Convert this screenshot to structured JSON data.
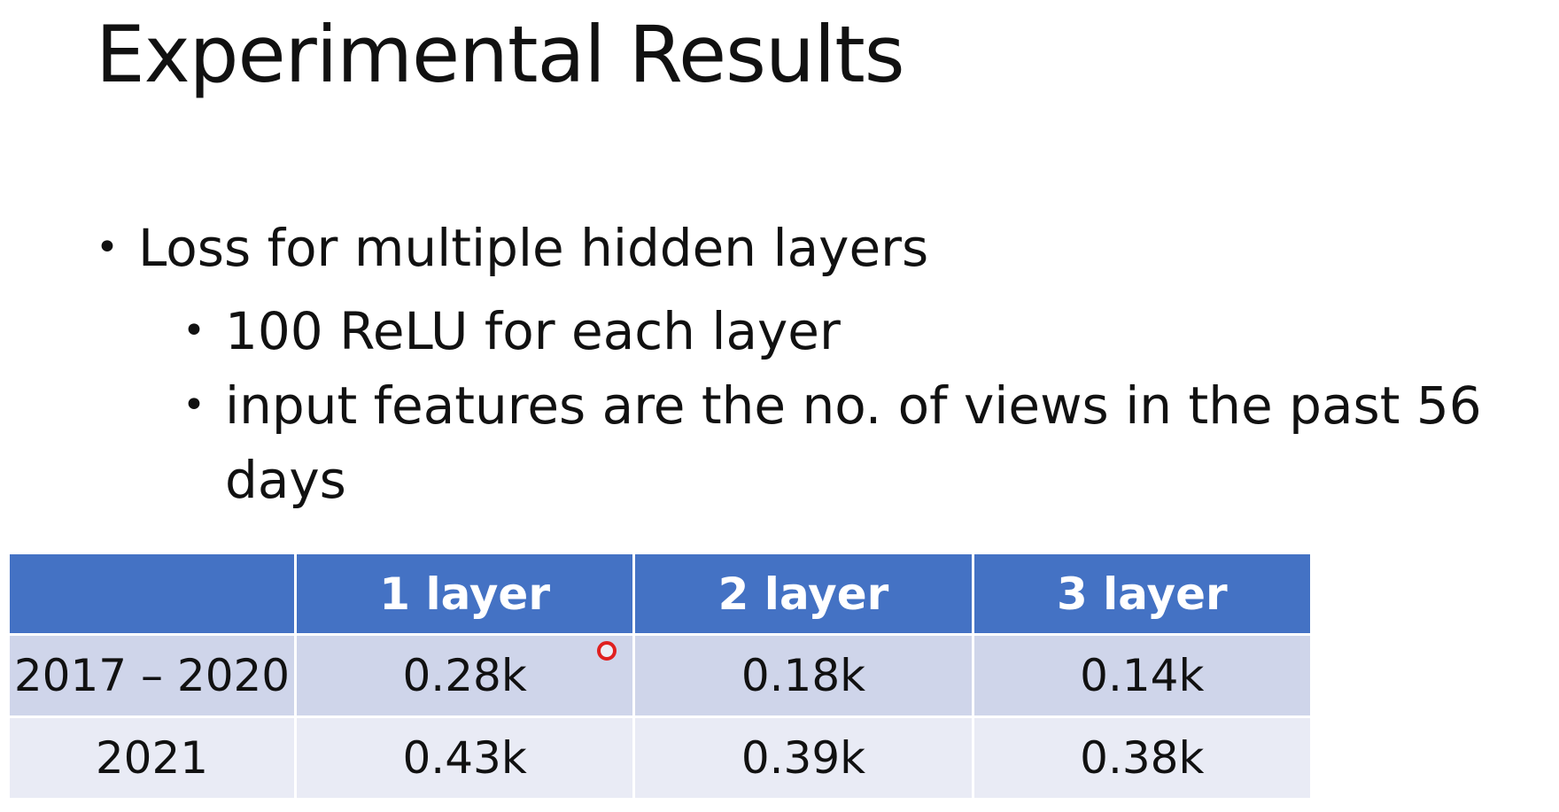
{
  "slide": {
    "title": "Experimental Results",
    "bullets": [
      {
        "text": "Loss for multiple hidden layers",
        "sub": [
          "100 ReLU for each layer",
          "input features are the no. of views in the past 56 days"
        ]
      }
    ],
    "table": {
      "headers": [
        "",
        "1 layer",
        "2 layer",
        "3 layer"
      ],
      "rows": [
        [
          "2017 – 2020",
          "0.28k",
          "0.18k",
          "0.14k"
        ],
        [
          "2021",
          "0.43k",
          "0.39k",
          "0.38k"
        ]
      ]
    }
  },
  "colors": {
    "header_bg": "#4472c4",
    "row1_bg": "#cfd5ea",
    "row2_bg": "#e9ebf5",
    "cursor": "#e02020"
  }
}
